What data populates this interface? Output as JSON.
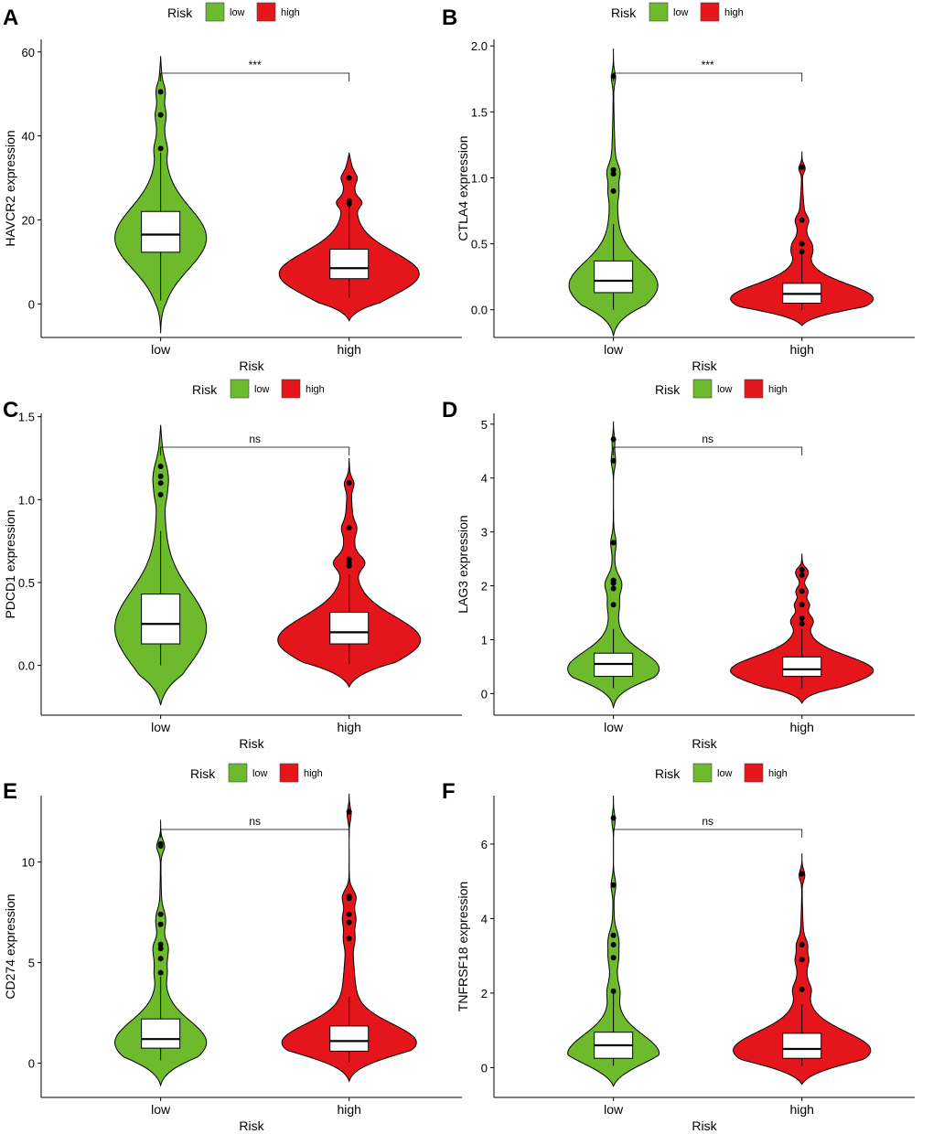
{
  "legend": {
    "title": "Risk",
    "items": [
      {
        "label": "low",
        "color": "#6DBA2C"
      },
      {
        "label": "high",
        "color": "#E4161C"
      }
    ]
  },
  "chart_data": [
    {
      "type": "violin",
      "panel": "A",
      "xlabel": "Risk",
      "ylabel": "HAVCR2 expression",
      "categories": [
        "low",
        "high"
      ],
      "yticks": [
        0,
        20,
        40,
        60
      ],
      "ylim": [
        -8,
        63
      ],
      "significance": "***",
      "series": [
        {
          "name": "low",
          "color": "#6DBA2C",
          "violin_min": -7,
          "violin_max": 59,
          "violin_mode": 15.5,
          "width": 0.68,
          "box": {
            "q1": 12.3,
            "median": 16.5,
            "q3": 22,
            "whisker_low": 0.8,
            "whisker_high": 36
          },
          "outliers": [
            37,
            45,
            50.5
          ]
        },
        {
          "name": "high",
          "color": "#E4161C",
          "violin_min": -4,
          "violin_max": 36,
          "violin_mode": 7,
          "width": 1.04,
          "box": {
            "q1": 6,
            "median": 8.5,
            "q3": 13,
            "whisker_low": 1.5,
            "whisker_high": 23.5
          },
          "outliers": [
            23.8,
            24.5,
            30
          ]
        }
      ]
    },
    {
      "type": "violin",
      "panel": "B",
      "xlabel": "Risk",
      "ylabel": "CTLA4 expression",
      "categories": [
        "low",
        "high"
      ],
      "yticks": [
        0.0,
        0.5,
        1.0,
        1.5,
        2.0
      ],
      "tick_decimals": 1,
      "ylim": [
        -0.21,
        2.05
      ],
      "significance": "***",
      "series": [
        {
          "name": "low",
          "color": "#6DBA2C",
          "violin_min": -0.2,
          "violin_max": 1.98,
          "violin_mode": 0.18,
          "width": 0.66,
          "box": {
            "q1": 0.13,
            "median": 0.22,
            "q3": 0.37,
            "whisker_low": 0.0,
            "whisker_high": 0.65
          },
          "outliers": [
            0.9,
            1.03,
            1.06,
            1.77
          ]
        },
        {
          "name": "high",
          "color": "#E4161C",
          "violin_min": -0.12,
          "violin_max": 1.2,
          "violin_mode": 0.08,
          "width": 1.06,
          "box": {
            "q1": 0.05,
            "median": 0.12,
            "q3": 0.2,
            "whisker_low": 0.0,
            "whisker_high": 0.42
          },
          "outliers": [
            0.44,
            0.5,
            0.68,
            1.08
          ]
        }
      ]
    },
    {
      "type": "violin",
      "panel": "C",
      "xlabel": "Risk",
      "ylabel": "PDCD1 expression",
      "categories": [
        "low",
        "high"
      ],
      "yticks": [
        0.0,
        0.5,
        1.0,
        1.5
      ],
      "tick_decimals": 1,
      "ylim": [
        -0.3,
        1.52
      ],
      "significance": "ns",
      "series": [
        {
          "name": "low",
          "color": "#6DBA2C",
          "violin_min": -0.24,
          "violin_max": 1.45,
          "violin_mode": 0.22,
          "width": 0.68,
          "box": {
            "q1": 0.13,
            "median": 0.25,
            "q3": 0.43,
            "whisker_low": 0.0,
            "whisker_high": 0.81
          },
          "outliers": [
            1.03,
            1.1,
            1.14,
            1.2
          ]
        },
        {
          "name": "high",
          "color": "#E4161C",
          "violin_min": -0.13,
          "violin_max": 1.25,
          "violin_mode": 0.15,
          "width": 1.06,
          "box": {
            "q1": 0.13,
            "median": 0.2,
            "q3": 0.32,
            "whisker_low": 0.01,
            "whisker_high": 0.55
          },
          "outliers": [
            0.6,
            0.62,
            0.64,
            0.83,
            1.1
          ]
        }
      ]
    },
    {
      "type": "violin",
      "panel": "D",
      "xlabel": "Risk",
      "ylabel": "LAG3 expression",
      "categories": [
        "low",
        "high"
      ],
      "yticks": [
        0,
        1,
        2,
        3,
        4,
        5
      ],
      "ylim": [
        -0.4,
        5.2
      ],
      "significance": "ns",
      "series": [
        {
          "name": "low",
          "color": "#6DBA2C",
          "violin_min": -0.27,
          "violin_max": 5.05,
          "violin_mode": 0.45,
          "width": 0.68,
          "box": {
            "q1": 0.32,
            "median": 0.55,
            "q3": 0.75,
            "whisker_low": 0.1,
            "whisker_high": 1.2
          },
          "outliers": [
            1.65,
            1.95,
            2.05,
            2.1,
            2.8,
            4.32,
            4.72
          ]
        },
        {
          "name": "high",
          "color": "#E4161C",
          "violin_min": -0.18,
          "violin_max": 2.6,
          "violin_mode": 0.42,
          "width": 1.06,
          "box": {
            "q1": 0.32,
            "median": 0.45,
            "q3": 0.68,
            "whisker_low": 0.1,
            "whisker_high": 1.2
          },
          "outliers": [
            1.3,
            1.4,
            1.65,
            1.9,
            2.2,
            2.3
          ]
        }
      ]
    },
    {
      "type": "violin",
      "panel": "E",
      "xlabel": "Risk",
      "ylabel": "CD274 expression",
      "categories": [
        "low",
        "high"
      ],
      "yticks": [
        0,
        5,
        10
      ],
      "ylim": [
        -1.7,
        13.3
      ],
      "significance": "ns",
      "series": [
        {
          "name": "low",
          "color": "#6DBA2C",
          "violin_min": -1.1,
          "violin_max": 12.1,
          "violin_mode": 1.0,
          "width": 0.68,
          "box": {
            "q1": 0.75,
            "median": 1.2,
            "q3": 2.2,
            "whisker_low": 0.15,
            "whisker_high": 4.3
          },
          "outliers": [
            4.5,
            5.2,
            5.7,
            5.9,
            6.9,
            7.4,
            10.8,
            10.9
          ]
        },
        {
          "name": "high",
          "color": "#E4161C",
          "violin_min": -0.9,
          "violin_max": 13.4,
          "violin_mode": 1.0,
          "width": 1.0,
          "box": {
            "q1": 0.6,
            "median": 1.1,
            "q3": 1.85,
            "whisker_low": 0.05,
            "whisker_high": 3.3
          },
          "outliers": [
            6.2,
            7.0,
            7.4,
            8.2,
            8.3,
            12.5
          ]
        }
      ]
    },
    {
      "type": "violin",
      "panel": "F",
      "xlabel": "Risk",
      "ylabel": "TNFRSF18 expression",
      "categories": [
        "low",
        "high"
      ],
      "yticks": [
        0,
        2,
        4,
        6
      ],
      "ylim": [
        -0.8,
        7.3
      ],
      "significance": "ns",
      "series": [
        {
          "name": "low",
          "color": "#6DBA2C",
          "violin_min": -0.5,
          "violin_max": 7.3,
          "violin_mode": 0.35,
          "width": 0.68,
          "box": {
            "q1": 0.25,
            "median": 0.6,
            "q3": 0.95,
            "whisker_low": 0.05,
            "whisker_high": 2.0
          },
          "outliers": [
            2.05,
            2.95,
            3.3,
            3.55,
            4.9,
            6.7
          ]
        },
        {
          "name": "high",
          "color": "#E4161C",
          "violin_min": -0.45,
          "violin_max": 5.75,
          "violin_mode": 0.45,
          "width": 1.02,
          "box": {
            "q1": 0.25,
            "median": 0.5,
            "q3": 0.92,
            "whisker_low": 0.05,
            "whisker_high": 1.7
          },
          "outliers": [
            2.1,
            2.9,
            3.3,
            5.2
          ]
        }
      ]
    }
  ]
}
